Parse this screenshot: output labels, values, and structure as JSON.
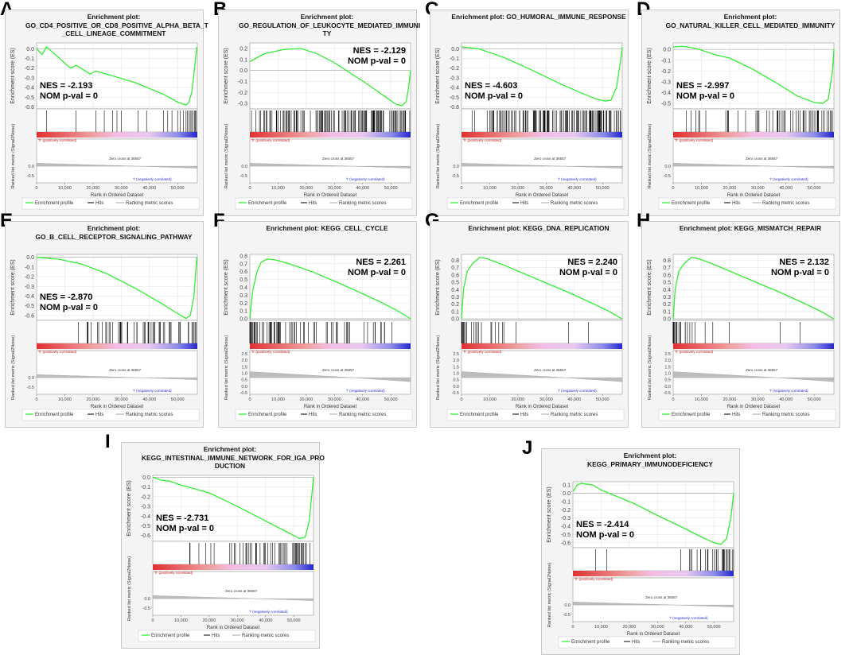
{
  "figure": {
    "common": {
      "ylabel_es": "Enrichment score (ES)",
      "ylabel_metric": "Ranked list metric (Signal2Noise)",
      "xlabel": "Rank in Ordered Dataset",
      "pos_label": "'h' (positively correlated)",
      "neg_label": "'l' (negatively correlated)",
      "zero_cross": "Zero cross at 36557",
      "legend": [
        "Enrichment profile",
        "Hits",
        "Ranking metric scores"
      ],
      "x_ticks": [
        "0",
        "10,000",
        "20,000",
        "30,000",
        "40,000",
        "50,000"
      ],
      "metric_ticks_neg": [
        "0.0",
        "-0.5"
      ],
      "metric_ticks_pos": [
        "2.5",
        "2.0",
        "1.5",
        "1.0",
        "0.5",
        "0.0",
        "-0.5"
      ],
      "colors": {
        "curve": "#33ee33",
        "grid": "#e6e6e6",
        "red": "#e03030",
        "pink": "#f4bde4",
        "blue": "#2525d0",
        "metric": "#bdbdbd"
      }
    }
  },
  "chart_data": [
    {
      "id": "A",
      "letter": "A",
      "title": "Enrichment plot:\nGO_CD4_POSITIVE_OR_CD8_POSITIVE_ALPHA_BETA_T\n_CELL_LINEAGE_COMMITMENT",
      "type": "line",
      "sign": "neg",
      "nes": "NES = -2.193",
      "pval": "NOM p-val = 0",
      "xlim": [
        0,
        57000
      ],
      "ylim": [
        -0.62,
        0.06
      ],
      "yticks": [
        "0.0",
        "-0.1",
        "-0.2",
        "-0.3",
        "-0.4",
        "-0.5",
        "-0.6"
      ],
      "es_points": [
        [
          0,
          0
        ],
        [
          2000,
          -0.06
        ],
        [
          3500,
          0.02
        ],
        [
          12000,
          -0.2
        ],
        [
          14000,
          -0.17
        ],
        [
          19000,
          -0.26
        ],
        [
          21000,
          -0.23
        ],
        [
          27000,
          -0.28
        ],
        [
          35000,
          -0.35
        ],
        [
          45000,
          -0.47
        ],
        [
          50000,
          -0.55
        ],
        [
          53000,
          -0.58
        ],
        [
          54000,
          -0.55
        ],
        [
          55000,
          -0.45
        ],
        [
          56000,
          -0.2
        ],
        [
          56800,
          0.02
        ]
      ],
      "hits": [
        3500,
        14000,
        21000,
        24000,
        27000,
        28500,
        30000,
        36000,
        39000,
        45000,
        46500,
        48000,
        50000,
        51000,
        52000,
        53000,
        53500,
        54000,
        54500,
        55000,
        55500,
        56000,
        56300,
        56600
      ]
    },
    {
      "id": "B",
      "letter": "B",
      "title": "Enrichment plot:\nGO_REGULATION_OF_LEUKOCYTE_MEDIATED_IMMUNI\nTY",
      "type": "line",
      "sign": "neg",
      "nes": "NES = -2.129",
      "pval": "NOM p-val = 0",
      "xlim": [
        0,
        57000
      ],
      "ylim": [
        -0.35,
        0.25
      ],
      "yticks": [
        "0.2",
        "0.1",
        "0.0",
        "-0.1",
        "-0.2",
        "-0.3"
      ],
      "es_points": [
        [
          0,
          0.08
        ],
        [
          5000,
          0.15
        ],
        [
          12000,
          0.19
        ],
        [
          18000,
          0.2
        ],
        [
          24000,
          0.15
        ],
        [
          30000,
          0.07
        ],
        [
          36000,
          -0.03
        ],
        [
          42000,
          -0.13
        ],
        [
          48000,
          -0.24
        ],
        [
          52000,
          -0.31
        ],
        [
          54000,
          -0.32
        ],
        [
          55500,
          -0.28
        ],
        [
          56300,
          -0.15
        ],
        [
          57000,
          0.0
        ]
      ],
      "hits": "dense"
    },
    {
      "id": "C",
      "letter": "C",
      "title": "Enrichment plot: GO_HUMORAL_IMMUNE_RESPONSE",
      "type": "line",
      "sign": "neg",
      "nes": "NES = -4.603",
      "pval": "NOM p-val = 0",
      "xlim": [
        0,
        57000
      ],
      "ylim": [
        -0.62,
        0.06
      ],
      "yticks": [
        "0.0",
        "-0.1",
        "-0.2",
        "-0.3",
        "-0.4",
        "-0.5",
        "-0.6"
      ],
      "es_points": [
        [
          0,
          0.02
        ],
        [
          6000,
          0.0
        ],
        [
          15000,
          -0.09
        ],
        [
          25000,
          -0.22
        ],
        [
          35000,
          -0.36
        ],
        [
          42000,
          -0.45
        ],
        [
          48000,
          -0.52
        ],
        [
          51000,
          -0.54
        ],
        [
          53000,
          -0.53
        ],
        [
          55000,
          -0.4
        ],
        [
          56500,
          -0.1
        ],
        [
          57000,
          0.02
        ]
      ],
      "hits": "dense"
    },
    {
      "id": "D",
      "letter": "D",
      "title": "Enrichment plot:\nGO_NATURAL_KILLER_CELL_MEDIATED_IMMUNITY",
      "type": "line",
      "sign": "neg",
      "nes": "NES = -2.997",
      "pval": "NOM p-val = 0",
      "xlim": [
        0,
        57000
      ],
      "ylim": [
        -0.55,
        0.06
      ],
      "yticks": [
        "0.0",
        "-0.1",
        "-0.2",
        "-0.3",
        "-0.4",
        "-0.5"
      ],
      "es_points": [
        [
          0,
          0.02
        ],
        [
          3000,
          0.03
        ],
        [
          8000,
          0.01
        ],
        [
          15000,
          -0.05
        ],
        [
          20000,
          -0.08
        ],
        [
          28000,
          -0.18
        ],
        [
          36000,
          -0.3
        ],
        [
          44000,
          -0.43
        ],
        [
          50000,
          -0.49
        ],
        [
          53000,
          -0.5
        ],
        [
          55000,
          -0.46
        ],
        [
          56500,
          -0.2
        ],
        [
          57000,
          0.0
        ]
      ],
      "hits": "mixed"
    },
    {
      "id": "E",
      "letter": "E",
      "title": "Enrichment plot:\nGO_B_CELL_RECEPTOR_SIGNALING_PATHWAY",
      "type": "line",
      "sign": "neg",
      "nes": "NES = -2.870",
      "pval": "NOM p-val = 0",
      "xlim": [
        0,
        57000
      ],
      "ylim": [
        -0.65,
        0.03
      ],
      "yticks": [
        "0.0",
        "-0.1",
        "-0.2",
        "-0.3",
        "-0.4",
        "-0.5",
        "-0.6"
      ],
      "es_points": [
        [
          0,
          0.0
        ],
        [
          8000,
          -0.02
        ],
        [
          16000,
          -0.07
        ],
        [
          25000,
          -0.17
        ],
        [
          35000,
          -0.32
        ],
        [
          44000,
          -0.47
        ],
        [
          50000,
          -0.58
        ],
        [
          53000,
          -0.63
        ],
        [
          54500,
          -0.6
        ],
        [
          55800,
          -0.4
        ],
        [
          56800,
          0.0
        ]
      ],
      "hits": "mixed"
    },
    {
      "id": "F",
      "letter": "F",
      "title": "Enrichment plot: KEGG_CELL_CYCLE",
      "type": "line",
      "sign": "pos",
      "nes": "NES = 2.261",
      "pval": "NOM p-val = 0",
      "xlim": [
        0,
        57000
      ],
      "ylim": [
        -0.02,
        0.82
      ],
      "yticks": [
        "0.8",
        "0.7",
        "0.6",
        "0.5",
        "0.4",
        "0.3",
        "0.2",
        "0.1",
        "0.0"
      ],
      "es_points": [
        [
          0,
          0.0
        ],
        [
          1000,
          0.35
        ],
        [
          2500,
          0.6
        ],
        [
          4000,
          0.72
        ],
        [
          6000,
          0.76
        ],
        [
          9000,
          0.75
        ],
        [
          14000,
          0.7
        ],
        [
          22000,
          0.6
        ],
        [
          30000,
          0.48
        ],
        [
          38000,
          0.35
        ],
        [
          46000,
          0.22
        ],
        [
          52000,
          0.11
        ],
        [
          57000,
          0.0
        ]
      ],
      "hits": "front"
    },
    {
      "id": "G",
      "letter": "G",
      "title": "Enrichment plot: KEGG_DNA_REPLICATION",
      "type": "line",
      "sign": "pos",
      "nes": "NES = 2.240",
      "pval": "NOM p-val = 0",
      "xlim": [
        0,
        57000
      ],
      "ylim": [
        -0.02,
        0.88
      ],
      "yticks": [
        "0.8",
        "0.7",
        "0.6",
        "0.5",
        "0.4",
        "0.3",
        "0.2",
        "0.1",
        "0.0"
      ],
      "es_points": [
        [
          0,
          0.0
        ],
        [
          700,
          0.4
        ],
        [
          2000,
          0.65
        ],
        [
          4000,
          0.76
        ],
        [
          6500,
          0.84
        ],
        [
          9000,
          0.82
        ],
        [
          14000,
          0.75
        ],
        [
          22000,
          0.62
        ],
        [
          30000,
          0.49
        ],
        [
          38000,
          0.36
        ],
        [
          46000,
          0.22
        ],
        [
          52000,
          0.11
        ],
        [
          57000,
          0.0
        ]
      ],
      "hits": "frontsparse"
    },
    {
      "id": "H",
      "letter": "H",
      "title": "Enrichment plot: KEGG_MISMATCH_REPAIR",
      "type": "line",
      "sign": "pos",
      "nes": "NES = 2.132",
      "pval": "NOM p-val = 0",
      "xlim": [
        0,
        57000
      ],
      "ylim": [
        -0.02,
        0.88
      ],
      "yticks": [
        "0.8",
        "0.7",
        "0.6",
        "0.5",
        "0.4",
        "0.3",
        "0.2",
        "0.1",
        "0.0"
      ],
      "es_points": [
        [
          0,
          0.0
        ],
        [
          700,
          0.4
        ],
        [
          2000,
          0.65
        ],
        [
          4000,
          0.76
        ],
        [
          6500,
          0.84
        ],
        [
          9000,
          0.82
        ],
        [
          14000,
          0.75
        ],
        [
          22000,
          0.62
        ],
        [
          30000,
          0.49
        ],
        [
          38000,
          0.36
        ],
        [
          46000,
          0.22
        ],
        [
          52000,
          0.11
        ],
        [
          57000,
          0.0
        ]
      ],
      "hits": "frontsparse"
    },
    {
      "id": "I",
      "letter": "I",
      "title": "Enrichment plot:\nKEGG_INTESTINAL_IMMUNE_NETWORK_FOR_IGA_PRO\nDUCTION",
      "type": "line",
      "sign": "neg",
      "nes": "NES = -2.731",
      "pval": "NOM p-val = 0",
      "xlim": [
        0,
        57000
      ],
      "ylim": [
        -0.66,
        0.02
      ],
      "yticks": [
        "0.0",
        "-0.1",
        "-0.2",
        "-0.3",
        "-0.4",
        "-0.5",
        "-0.6"
      ],
      "es_points": [
        [
          0,
          0.0
        ],
        [
          3000,
          -0.03
        ],
        [
          6000,
          -0.04
        ],
        [
          10000,
          -0.08
        ],
        [
          15000,
          -0.12
        ],
        [
          20000,
          -0.16
        ],
        [
          30000,
          -0.3
        ],
        [
          40000,
          -0.45
        ],
        [
          48000,
          -0.57
        ],
        [
          52000,
          -0.63
        ],
        [
          54000,
          -0.62
        ],
        [
          55500,
          -0.45
        ],
        [
          56500,
          -0.15
        ],
        [
          57000,
          0.0
        ]
      ],
      "hits": "mixed"
    },
    {
      "id": "J",
      "letter": "J",
      "title": "Enrichment plot: KEGG_PRIMARY_IMMUNODEFICIENCY",
      "type": "line",
      "sign": "neg",
      "nes": "NES = -2.414",
      "pval": "NOM p-val = 0",
      "xlim": [
        0,
        57000
      ],
      "ylim": [
        -0.66,
        0.14
      ],
      "yticks": [
        "0.1",
        "0.0",
        "-0.1",
        "-0.2",
        "-0.3",
        "-0.4",
        "-0.5",
        "-0.6"
      ],
      "es_points": [
        [
          0,
          0.02
        ],
        [
          1500,
          0.1
        ],
        [
          3000,
          0.12
        ],
        [
          7000,
          0.1
        ],
        [
          10000,
          0.04
        ],
        [
          15000,
          -0.03
        ],
        [
          22000,
          -0.13
        ],
        [
          30000,
          -0.27
        ],
        [
          38000,
          -0.4
        ],
        [
          45000,
          -0.52
        ],
        [
          50000,
          -0.6
        ],
        [
          52500,
          -0.62
        ],
        [
          54500,
          -0.55
        ],
        [
          56000,
          -0.3
        ],
        [
          57000,
          0.0
        ]
      ],
      "hits": "backsparse"
    }
  ]
}
